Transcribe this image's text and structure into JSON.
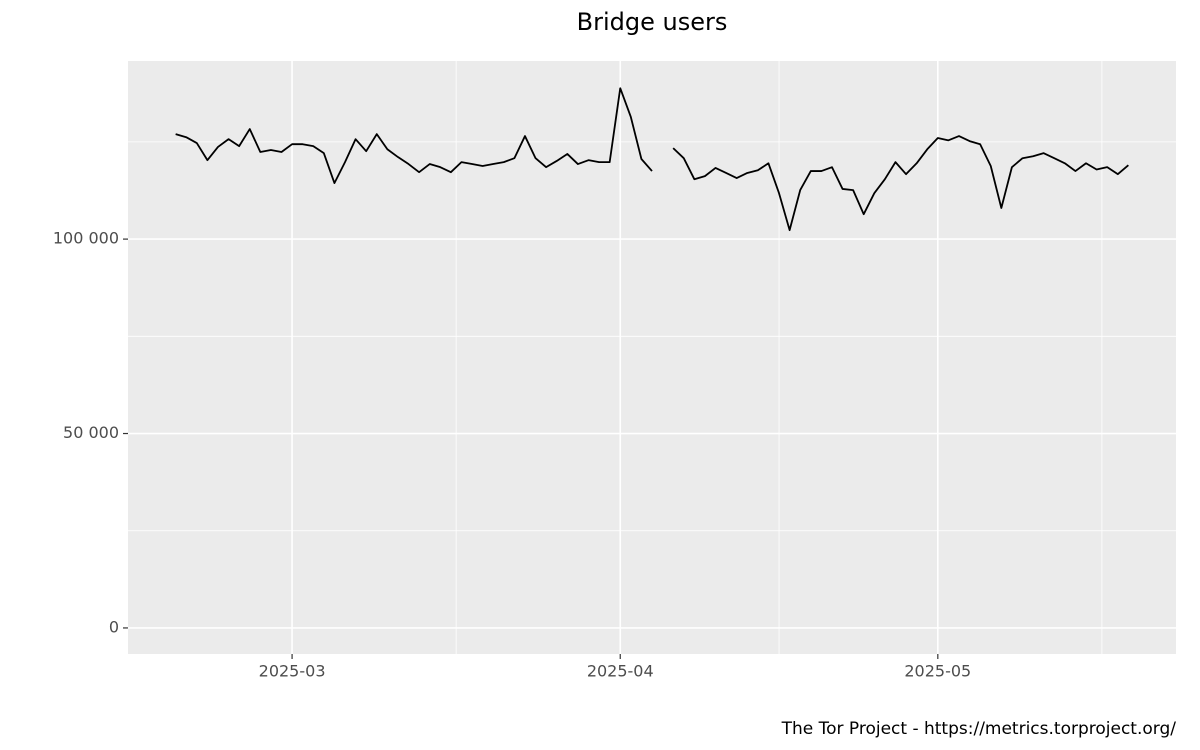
{
  "chart_data": {
    "type": "line",
    "title": "Bridge users",
    "caption": "The Tor Project - https://metrics.torproject.org/",
    "color": "#000000",
    "grid": true,
    "categories": [
      null,
      null,
      null,
      null,
      null,
      null,
      null,
      null,
      null,
      null,
      null,
      "2025-03",
      null,
      null,
      null,
      null,
      null,
      null,
      null,
      null,
      null,
      null,
      null,
      null,
      null,
      null,
      null,
      null,
      null,
      null,
      null,
      null,
      null,
      null,
      null,
      null,
      null,
      null,
      null,
      null,
      null,
      null,
      "2025-04",
      null,
      null,
      null,
      null,
      null,
      null,
      null,
      null,
      null,
      null,
      null,
      null,
      null,
      null,
      null,
      null,
      null,
      null,
      null,
      null,
      null,
      null,
      null,
      null,
      null,
      null,
      null,
      null,
      null,
      "2025-05",
      null,
      null,
      null,
      null,
      null,
      null,
      null,
      null,
      null,
      null,
      null,
      null,
      null,
      null,
      null,
      null,
      null,
      null
    ],
    "values": [
      127000,
      126200,
      124700,
      120300,
      123700,
      125700,
      123900,
      128300,
      122400,
      122900,
      122400,
      124400,
      124400,
      123900,
      122100,
      114400,
      119800,
      125700,
      122600,
      127000,
      123100,
      121100,
      119300,
      117200,
      119300,
      118500,
      117200,
      119800,
      119300,
      118800,
      119300,
      119800,
      120800,
      126500,
      120800,
      118500,
      120100,
      121900,
      119300,
      120300,
      119800,
      119800,
      138800,
      131400,
      120600,
      117500,
      null,
      123400,
      120800,
      115400,
      116200,
      118300,
      117000,
      115700,
      117000,
      117700,
      119500,
      111800,
      102300,
      112600,
      117500,
      117500,
      118500,
      112900,
      112600,
      106400,
      111800,
      115400,
      119800,
      116700,
      119500,
      123100,
      126000,
      125400,
      126500,
      125200,
      124400,
      118800,
      108000,
      118500,
      120800,
      121300,
      122100,
      120800,
      119500,
      117500,
      119500,
      117900,
      118500,
      116700,
      119000
    ],
    "ylim": [
      -6700,
      145800
    ],
    "yticks": [
      0,
      {
        "value": 50000,
        "label": "50 000"
      },
      {
        "value": 100000,
        "label": "100 000"
      }
    ]
  }
}
